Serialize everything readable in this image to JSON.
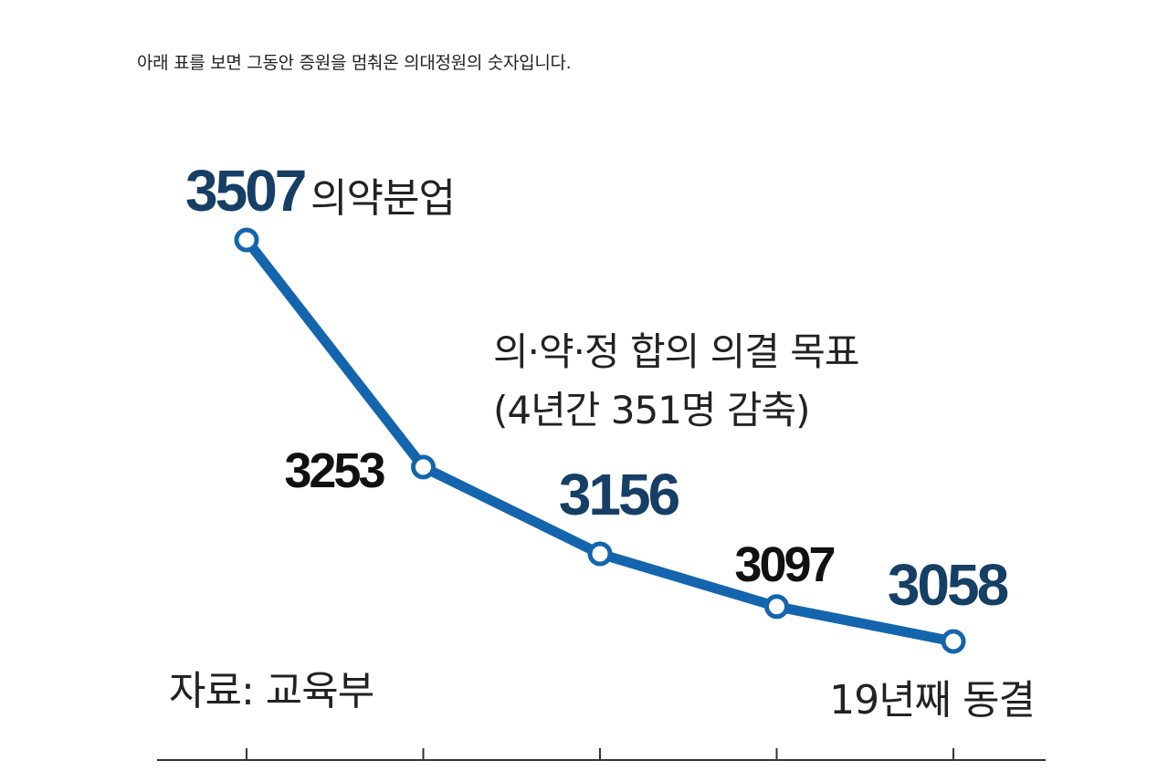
{
  "intro_text": "아래 표를 보면 그동안 증원을 멈춰온 의대정원의 숫자입니다.",
  "chart_data": {
    "type": "line",
    "title": "",
    "xlabel": "",
    "ylabel": "",
    "series": [
      {
        "values": [
          3507,
          3253,
          3156,
          3097,
          3058
        ],
        "value_labels": [
          "3507",
          "3253",
          "3156",
          "3097",
          "3058"
        ],
        "highlighted": [
          true,
          false,
          true,
          false,
          true
        ]
      }
    ],
    "ylim": [
      3058,
      3507
    ],
    "grid": false,
    "legend": "none",
    "annotations": {
      "first_point_note": "의약분업",
      "agreement_line1": "의·약·정 합의 의결 목표",
      "agreement_line2": "(4년간 351명 감축)",
      "source": "자료: 교육부",
      "last_point_note": "19년째 동결"
    },
    "colors": {
      "line": "#1465ad",
      "highlight_label": "#163f66",
      "normal_label": "#111111",
      "annotation": "#222222",
      "axis": "#333333"
    }
  }
}
